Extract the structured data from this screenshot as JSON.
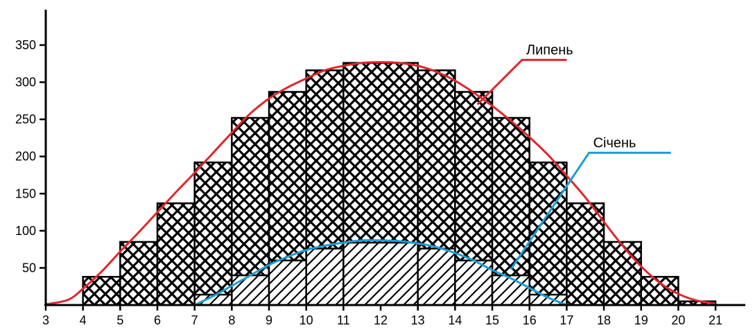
{
  "chart_data": {
    "type": "bar",
    "title": "",
    "xlabel": "",
    "ylabel": "",
    "x_ticks": [
      3,
      4,
      5,
      6,
      7,
      8,
      9,
      10,
      11,
      12,
      13,
      14,
      15,
      16,
      17,
      18,
      19,
      20,
      21
    ],
    "y_ticks": [
      50,
      100,
      150,
      200,
      250,
      300,
      350
    ],
    "xlim": [
      3,
      21.8
    ],
    "ylim": [
      0,
      400
    ],
    "series": [
      {
        "name": "Липень",
        "color": "#e0262b",
        "hatch": "crosshatch",
        "bars": [
          {
            "x0": 4,
            "x1": 5,
            "value": 38
          },
          {
            "x0": 5,
            "x1": 6,
            "value": 85
          },
          {
            "x0": 6,
            "x1": 7,
            "value": 137
          },
          {
            "x0": 7,
            "x1": 8,
            "value": 192
          },
          {
            "x0": 8,
            "x1": 9,
            "value": 252
          },
          {
            "x0": 9,
            "x1": 10,
            "value": 287
          },
          {
            "x0": 10,
            "x1": 11,
            "value": 316
          },
          {
            "x0": 11,
            "x1": 13,
            "value": 326
          },
          {
            "x0": 13,
            "x1": 14,
            "value": 316
          },
          {
            "x0": 14,
            "x1": 15,
            "value": 287
          },
          {
            "x0": 15,
            "x1": 16,
            "value": 252
          },
          {
            "x0": 16,
            "x1": 17,
            "value": 192
          },
          {
            "x0": 17,
            "x1": 18,
            "value": 137
          },
          {
            "x0": 18,
            "x1": 19,
            "value": 85
          },
          {
            "x0": 19,
            "x1": 20,
            "value": 38
          },
          {
            "x0": 20,
            "x1": 21,
            "value": 5
          }
        ],
        "curve": [
          [
            3.0,
            1
          ],
          [
            3.6,
            7
          ],
          [
            4.0,
            22
          ],
          [
            4.5,
            45
          ],
          [
            5.0,
            72
          ],
          [
            5.5,
            98
          ],
          [
            6.0,
            125
          ],
          [
            6.5,
            152
          ],
          [
            7.0,
            178
          ],
          [
            7.5,
            205
          ],
          [
            8.0,
            232
          ],
          [
            8.5,
            258
          ],
          [
            9.0,
            278
          ],
          [
            9.5,
            293
          ],
          [
            10.0,
            305
          ],
          [
            10.5,
            316
          ],
          [
            11.0,
            322
          ],
          [
            11.5,
            326
          ],
          [
            12.0,
            327
          ],
          [
            12.5,
            326
          ],
          [
            13.0,
            322
          ],
          [
            13.5,
            314
          ],
          [
            14.0,
            302
          ],
          [
            14.5,
            286
          ],
          [
            15.0,
            268
          ],
          [
            15.5,
            248
          ],
          [
            16.0,
            226
          ],
          [
            16.5,
            202
          ],
          [
            17.0,
            174
          ],
          [
            17.5,
            145
          ],
          [
            18.0,
            112
          ],
          [
            18.5,
            80
          ],
          [
            19.0,
            52
          ],
          [
            19.5,
            30
          ],
          [
            20.0,
            15
          ],
          [
            20.5,
            6
          ],
          [
            21.0,
            2
          ]
        ]
      },
      {
        "name": "Січень",
        "color": "#1a9ed4",
        "hatch": "diagonal",
        "bars": [
          {
            "x0": 7,
            "x1": 8,
            "value": 14
          },
          {
            "x0": 8,
            "x1": 9,
            "value": 40
          },
          {
            "x0": 9,
            "x1": 10,
            "value": 60
          },
          {
            "x0": 10,
            "x1": 11,
            "value": 76
          },
          {
            "x0": 11,
            "x1": 13,
            "value": 84
          },
          {
            "x0": 13,
            "x1": 14,
            "value": 76
          },
          {
            "x0": 14,
            "x1": 15,
            "value": 60
          },
          {
            "x0": 15,
            "x1": 16,
            "value": 40
          },
          {
            "x0": 16,
            "x1": 17,
            "value": 14
          }
        ],
        "curve": [
          [
            7.0,
            0
          ],
          [
            7.5,
            12
          ],
          [
            8.0,
            26
          ],
          [
            8.5,
            40
          ],
          [
            9.0,
            54
          ],
          [
            9.5,
            65
          ],
          [
            10.0,
            74
          ],
          [
            10.5,
            80
          ],
          [
            11.0,
            84
          ],
          [
            11.5,
            87
          ],
          [
            12.0,
            87
          ],
          [
            12.5,
            86
          ],
          [
            13.0,
            83
          ],
          [
            13.5,
            78
          ],
          [
            14.0,
            70
          ],
          [
            14.5,
            60
          ],
          [
            15.0,
            47
          ],
          [
            15.5,
            36
          ],
          [
            16.0,
            23
          ],
          [
            16.5,
            10
          ],
          [
            17.0,
            0
          ]
        ]
      }
    ],
    "annotations": [
      {
        "text": "Липень",
        "series": "Липень",
        "leader": [
          [
            14.6,
            270
          ],
          [
            15.8,
            330
          ],
          [
            17.0,
            330
          ]
        ]
      },
      {
        "text": "Січень",
        "series": "Січень",
        "leader": [
          [
            15.5,
            48
          ],
          [
            17.6,
            205
          ],
          [
            19.8,
            205
          ]
        ]
      }
    ]
  }
}
